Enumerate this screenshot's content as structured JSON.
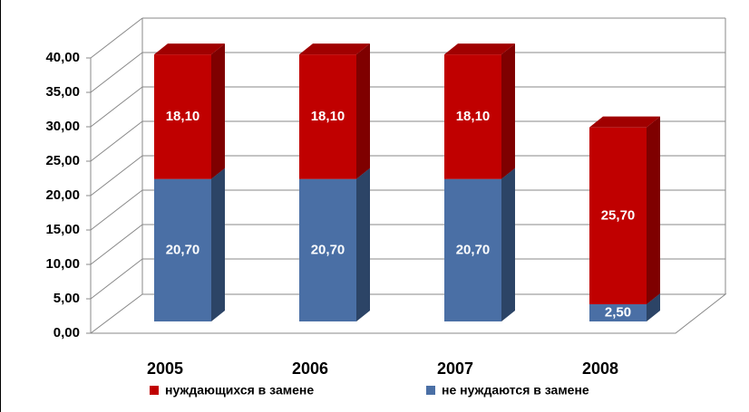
{
  "chart_data": {
    "type": "bar3d_stacked",
    "categories": [
      "2005",
      "2006",
      "2007",
      "2008"
    ],
    "series": [
      {
        "name": "не нуждаются в замене",
        "color": "#4a6fa5",
        "side": "#2c4466",
        "top": "#3a5a88",
        "values": [
          20.7,
          20.7,
          20.7,
          2.5
        ],
        "value_labels": [
          "20,70",
          "20,70",
          "20,70",
          "2,50"
        ]
      },
      {
        "name": "нуждающихся в замене",
        "color": "#c00000",
        "side": "#7f0000",
        "top": "#a00000",
        "values": [
          18.1,
          18.1,
          18.1,
          25.7
        ],
        "value_labels": [
          "18,10",
          "18,10",
          "18,10",
          "25,70"
        ]
      }
    ],
    "ylim": [
      0,
      40
    ],
    "yticks": [
      {
        "value": 0,
        "label": "0,00"
      },
      {
        "value": 5,
        "label": "5,00"
      },
      {
        "value": 10,
        "label": "10,00"
      },
      {
        "value": 15,
        "label": "15,00"
      },
      {
        "value": 20,
        "label": "20,00"
      },
      {
        "value": 25,
        "label": "25,00"
      },
      {
        "value": 30,
        "label": "30,00"
      },
      {
        "value": 35,
        "label": "35,00"
      },
      {
        "value": 40,
        "label": "40,00"
      }
    ],
    "grid": true,
    "legend": "bottom"
  }
}
